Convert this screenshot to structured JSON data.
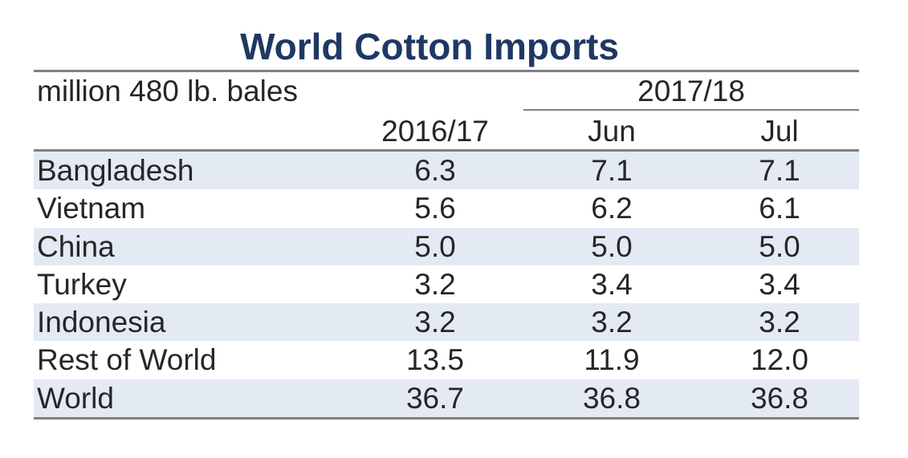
{
  "chart_data": {
    "type": "table",
    "title": "World Cotton Imports",
    "units": "million 480 lb. bales",
    "column_group": "2017/18",
    "columns": [
      "2016/17",
      "Jun",
      "Jul"
    ],
    "rows": [
      {
        "country": "Bangladesh",
        "values": [
          "6.3",
          "7.1",
          "7.1"
        ]
      },
      {
        "country": "Vietnam",
        "values": [
          "5.6",
          "6.2",
          "6.1"
        ]
      },
      {
        "country": "China",
        "values": [
          "5.0",
          "5.0",
          "5.0"
        ]
      },
      {
        "country": "Turkey",
        "values": [
          "3.2",
          "3.4",
          "3.4"
        ]
      },
      {
        "country": "Indonesia",
        "values": [
          "3.2",
          "3.2",
          "3.2"
        ]
      },
      {
        "country": "Rest of World",
        "values": [
          "13.5",
          "11.9",
          "12.0"
        ]
      },
      {
        "country": "World",
        "values": [
          "36.7",
          "36.8",
          "36.8"
        ]
      }
    ]
  },
  "colors": {
    "title": "#1f3864",
    "row_shade": "#e3eaf4",
    "rule": "#808080",
    "text": "#262626"
  }
}
